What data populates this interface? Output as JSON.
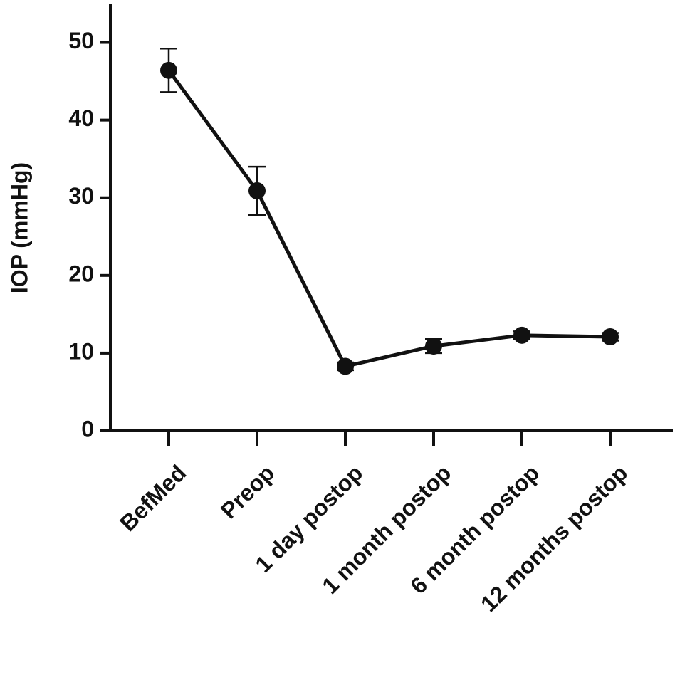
{
  "chart_data": {
    "type": "line",
    "y_label": "IOP (mmHg)",
    "categories": [
      "BefMed",
      "Preop",
      "1 day postop",
      "1 month postop",
      "6 month postop",
      "12 months postop"
    ],
    "values": [
      46.4,
      30.9,
      8.3,
      10.9,
      12.3,
      12.1
    ],
    "errors": [
      2.8,
      3.1,
      0.5,
      0.9,
      0.5,
      0.5
    ],
    "color": "#111111",
    "ylim": [
      0,
      55
    ],
    "yticks": [
      0,
      10,
      20,
      30,
      40,
      50
    ]
  }
}
